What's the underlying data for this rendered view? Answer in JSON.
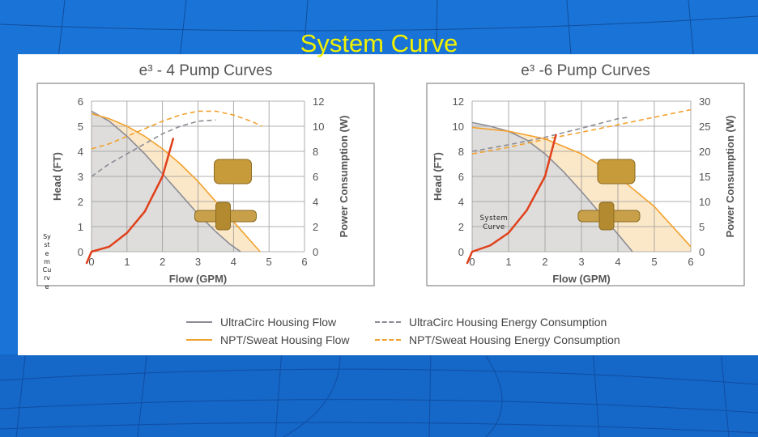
{
  "slide": {
    "title": "System Curve",
    "vertical_label": "SystemCurve",
    "inner_label": "System Curve"
  },
  "colors": {
    "background": "#1a73d6",
    "title": "#f2f200",
    "ultracirc_line": "#8c8c96",
    "npt_line": "#f2a12e",
    "system_curve": "#e0401b",
    "ultracirc_fill": "#dcdcdc",
    "npt_fill": "#fbe8c8"
  },
  "legend": {
    "ultracirc_flow": "UltraCirc Housing Flow",
    "npt_flow": "NPT/Sweat Housing Flow",
    "ultracirc_energy": "UltraCirc Housing Energy Consumption",
    "npt_energy": "NPT/Sweat Housing Energy Consumption"
  },
  "chart_data": [
    {
      "type": "line",
      "title": "e³ - 4 Pump Curves",
      "xlabel": "Flow (GPM)",
      "ylabel": "Head (FT)",
      "y2label": "Power Consumption (W)",
      "xlim": [
        0,
        6
      ],
      "ylim": [
        0,
        6
      ],
      "y2lim": [
        0,
        12
      ],
      "xticks": [
        0,
        1,
        2,
        3,
        4,
        5,
        6
      ],
      "yticks": [
        0,
        1,
        2,
        3,
        4,
        5,
        6
      ],
      "y2ticks": [
        0,
        2,
        4,
        6,
        8,
        10,
        12
      ],
      "grid": true,
      "series": [
        {
          "name": "UltraCirc Housing Flow",
          "axis": "left",
          "style": "solid",
          "x": [
            0,
            0.5,
            1,
            1.5,
            2,
            2.5,
            3,
            3.5,
            3.9,
            4.2
          ],
          "y": [
            5.6,
            5.2,
            4.6,
            3.9,
            3.1,
            2.3,
            1.5,
            0.8,
            0.3,
            0
          ]
        },
        {
          "name": "NPT/Sweat Housing Flow",
          "axis": "left",
          "style": "solid",
          "x": [
            0,
            0.5,
            1,
            1.5,
            2,
            2.5,
            3,
            3.5,
            4,
            4.5,
            4.75
          ],
          "y": [
            5.5,
            5.3,
            5.0,
            4.6,
            4.1,
            3.5,
            2.8,
            2.0,
            1.2,
            0.4,
            0
          ]
        },
        {
          "name": "UltraCirc Housing Energy Consumption",
          "axis": "right",
          "style": "dashed",
          "x": [
            0,
            0.5,
            1,
            1.5,
            2,
            2.5,
            3,
            3.5
          ],
          "y2": [
            6.0,
            7.0,
            7.8,
            8.6,
            9.4,
            10.0,
            10.4,
            10.5
          ]
        },
        {
          "name": "NPT/Sweat Housing Energy Consumption",
          "axis": "right",
          "style": "dashed",
          "x": [
            0,
            0.5,
            1,
            1.5,
            2,
            2.5,
            3,
            3.5,
            4,
            4.5,
            4.8
          ],
          "y2": [
            8.2,
            8.6,
            9.2,
            9.8,
            10.4,
            10.9,
            11.2,
            11.2,
            10.9,
            10.4,
            10.0
          ]
        }
      ],
      "system_curve": {
        "x": [
          0,
          0.5,
          1,
          1.5,
          2,
          2.3
        ],
        "y": [
          0,
          0.2,
          0.75,
          1.6,
          3.0,
          4.5
        ]
      }
    },
    {
      "type": "line",
      "title": "e³ -6 Pump Curves",
      "xlabel": "Flow (GPM)",
      "ylabel": "Head (FT)",
      "y2label": "Power Consumption (W)",
      "xlim": [
        0,
        6
      ],
      "ylim": [
        0,
        12
      ],
      "y2lim": [
        0,
        30
      ],
      "xticks": [
        0,
        1,
        2,
        3,
        4,
        5,
        6
      ],
      "yticks": [
        0,
        2,
        4,
        6,
        8,
        10,
        12
      ],
      "y2ticks": [
        0,
        5,
        10,
        15,
        20,
        25,
        30
      ],
      "grid": true,
      "series": [
        {
          "name": "UltraCirc Housing Flow",
          "axis": "left",
          "style": "solid",
          "x": [
            0,
            0.5,
            1,
            1.5,
            2,
            2.5,
            3,
            3.5,
            4,
            4.4
          ],
          "y": [
            10.3,
            10.0,
            9.6,
            8.9,
            7.8,
            6.4,
            4.8,
            3.1,
            1.4,
            0
          ]
        },
        {
          "name": "NPT/Sweat Housing Flow",
          "axis": "left",
          "style": "solid",
          "x": [
            0,
            1,
            2,
            3,
            4,
            5,
            6
          ],
          "y": [
            9.9,
            9.6,
            9.0,
            7.8,
            6.0,
            3.6,
            0.4
          ]
        },
        {
          "name": "UltraCirc Housing Energy Consumption",
          "axis": "right",
          "style": "dashed",
          "x": [
            0,
            1,
            2,
            3,
            4,
            4.3
          ],
          "y2": [
            20.0,
            21.3,
            22.8,
            24.6,
            26.5,
            26.8
          ]
        },
        {
          "name": "NPT/Sweat Housing Energy Consumption",
          "axis": "right",
          "style": "dashed",
          "x": [
            0,
            1,
            2,
            3,
            4,
            5,
            6
          ],
          "y2": [
            19.5,
            20.8,
            22.4,
            23.8,
            25.3,
            26.8,
            28.3
          ]
        }
      ],
      "system_curve": {
        "x": [
          0,
          0.5,
          1,
          1.5,
          2,
          2.3
        ],
        "y": [
          0,
          0.5,
          1.5,
          3.3,
          6.0,
          9.3
        ]
      }
    }
  ]
}
